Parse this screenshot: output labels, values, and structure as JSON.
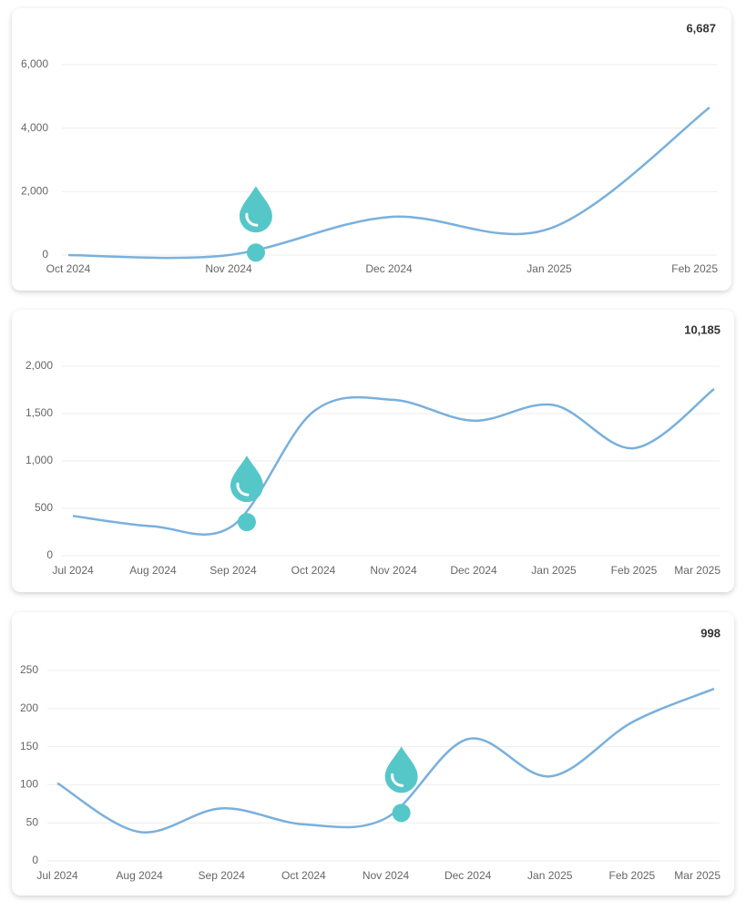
{
  "chart_data": [
    {
      "type": "line",
      "total": "6,687",
      "categories": [
        "Oct 2024",
        "Nov 2024",
        "Dec 2024",
        "Jan 2025",
        "Feb 2025"
      ],
      "series": [
        {
          "color": "#7ab0dc",
          "values": [
            0,
            0,
            1200,
            830,
            4650
          ]
        }
      ],
      "ylim": [
        0,
        6000
      ],
      "yticks": [
        0,
        {
          "value": 2000,
          "label": "2,000"
        },
        {
          "value": 4000,
          "label": "4,000"
        },
        {
          "value": 6000,
          "label": "6,000"
        }
      ],
      "grid": true,
      "marker": {
        "position": 1.17,
        "value": 80,
        "color": "#56c7c9"
      }
    },
    {
      "type": "line",
      "total": "10,185",
      "categories": [
        "Jul 2024",
        "Aug 2024",
        "Sep 2024",
        "Oct 2024",
        "Nov 2024",
        "Dec 2024",
        "Jan 2025",
        "Feb 2025",
        "Mar 2025"
      ],
      "series": [
        {
          "color": "#7ab0dc",
          "values": [
            420,
            310,
            320,
            1520,
            1645,
            1425,
            1590,
            1135,
            1760
          ]
        }
      ],
      "ylim": [
        0,
        2000
      ],
      "yticks": [
        0,
        500,
        {
          "value": 1000,
          "label": "1,000"
        },
        {
          "value": 1500,
          "label": "1,500"
        },
        {
          "value": 2000,
          "label": "2,000"
        }
      ],
      "grid": true,
      "marker": {
        "position": 2.17,
        "value": 355,
        "color": "#56c7c9"
      }
    },
    {
      "type": "line",
      "total": "998",
      "categories": [
        "Jul 2024",
        "Aug 2024",
        "Sep 2024",
        "Oct 2024",
        "Nov 2024",
        "Dec 2024",
        "Jan 2025",
        "Feb 2025",
        "Mar 2025"
      ],
      "series": [
        {
          "color": "#7ab0dc",
          "values": [
            102,
            38,
            69,
            48,
            56,
            160,
            111,
            182,
            226
          ]
        }
      ],
      "ylim": [
        0,
        250
      ],
      "yticks": [
        0,
        50,
        100,
        150,
        200,
        250
      ],
      "grid": true,
      "marker": {
        "position": 4.19,
        "value": 63,
        "color": "#56c7c9"
      }
    }
  ]
}
